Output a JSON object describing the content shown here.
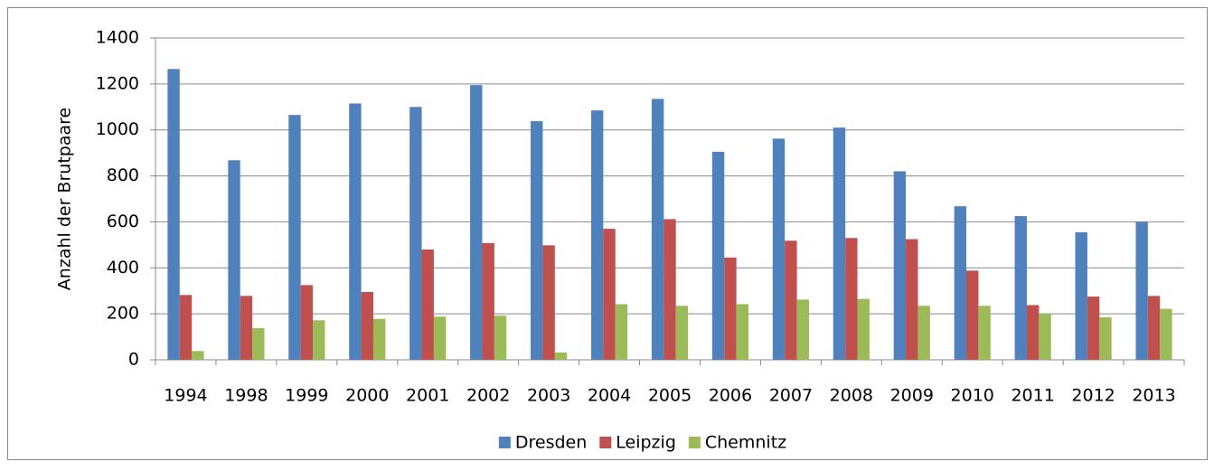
{
  "chart_data": {
    "type": "bar",
    "y_label": "Anzahl  der Brutpaare",
    "categories": [
      "1994",
      "1998",
      "1999",
      "2000",
      "2001",
      "2002",
      "2003",
      "2004",
      "2005",
      "2006",
      "2007",
      "2008",
      "2009",
      "2010",
      "2011",
      "2012",
      "2013"
    ],
    "series": [
      {
        "name": "Dresden",
        "color": "#4f81bd",
        "values": [
          1265,
          868,
          1065,
          1115,
          1100,
          1195,
          1038,
          1085,
          1135,
          905,
          962,
          1010,
          820,
          668,
          625,
          555,
          600
        ]
      },
      {
        "name": "Leipzig",
        "color": "#c0504d",
        "values": [
          282,
          278,
          325,
          295,
          480,
          508,
          498,
          570,
          612,
          445,
          518,
          530,
          525,
          388,
          238,
          275,
          278
        ]
      },
      {
        "name": "Chemnitz",
        "color": "#9bbb59",
        "values": [
          38,
          138,
          172,
          178,
          188,
          192,
          32,
          242,
          235,
          242,
          262,
          265,
          235,
          235,
          202,
          185,
          222
        ]
      }
    ],
    "ylim": [
      0,
      1400
    ],
    "yticks": [
      0,
      200,
      400,
      600,
      800,
      1000,
      1200,
      1400
    ],
    "grid": true,
    "legend": "bottom"
  }
}
